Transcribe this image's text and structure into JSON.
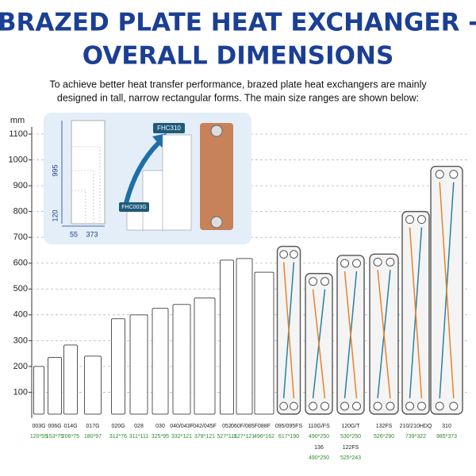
{
  "chart_data": {
    "type": "bar",
    "title": [
      "BRAZED PLATE HEAT EXCHANGER -",
      "OVERALL DIMENSIONS"
    ],
    "subtitle": [
      "To achieve better heat transfer performance, brazed plate heat exchangers are mainly",
      "designed in tall, narrow rectangular forms. The main size ranges are shown below:"
    ],
    "y_unit": "mm",
    "categories": [
      "003G",
      "006G",
      "014G",
      "017G",
      "020G",
      "028",
      "030",
      "040/043F",
      "042/045F",
      "052",
      "060F/085F",
      "088F",
      "095/095FS",
      "110G/FS",
      "120G/T",
      "132FS",
      "210/210HDQ",
      "310"
    ],
    "dimensions": [
      "120*55",
      "153*75",
      "206*75",
      "180*97",
      "312*76",
      "311*111",
      "325*95",
      "332*121",
      "378*121",
      "527*111",
      "527*121",
      "496*162",
      "617*190",
      "490*250",
      "530*250",
      "526*290",
      "739*322",
      "985*373"
    ],
    "secondary_categories": [
      null,
      null,
      null,
      null,
      null,
      null,
      null,
      null,
      null,
      null,
      null,
      null,
      null,
      "136",
      "122FS",
      null,
      null,
      null
    ],
    "secondary_dimensions": [
      null,
      null,
      null,
      null,
      null,
      null,
      null,
      null,
      null,
      null,
      null,
      null,
      null,
      "490*250",
      "525*243",
      null,
      null,
      null
    ],
    "values": [
      200,
      235,
      283,
      240,
      385,
      400,
      425,
      440,
      465,
      612,
      618,
      565,
      665,
      560,
      630,
      635,
      800,
      975
    ],
    "ylim": [
      0,
      1100
    ],
    "yticks": [
      100,
      200,
      300,
      400,
      500,
      600,
      700,
      800,
      900,
      1000,
      1100
    ],
    "grid": true
  },
  "inset": {
    "height_large": "995",
    "height_small": "120",
    "width_small": "55",
    "width_large": "373",
    "tag_large": "FHC310",
    "tag_small": "FHC003G"
  }
}
